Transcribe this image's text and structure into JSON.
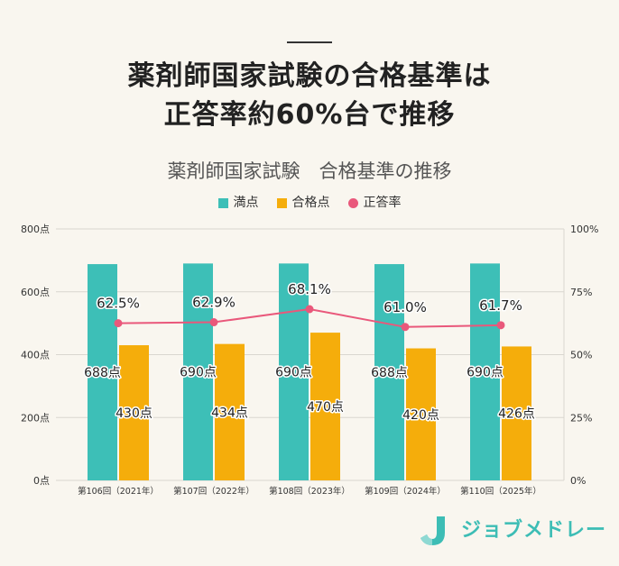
{
  "header": {
    "title_line1": "薬剤師国家試験の合格基準は",
    "title_line2": "正答率約60%台で推移"
  },
  "chart_data": {
    "type": "bar",
    "title": "薬剤師国家試験　合格基準の推移",
    "categories": [
      "第106回（2021年）",
      "第107回（2022年）",
      "第108回（2023年）",
      "第109回（2024年）",
      "第110回（2025年）"
    ],
    "series": [
      {
        "name": "満点",
        "type": "bar",
        "axis": "left",
        "values": [
          688,
          690,
          690,
          688,
          690
        ],
        "unit": "点",
        "color": "#3dbfb7"
      },
      {
        "name": "合格点",
        "type": "bar",
        "axis": "left",
        "values": [
          430,
          434,
          470,
          420,
          426
        ],
        "unit": "点",
        "color": "#f5ad0b"
      },
      {
        "name": "正答率",
        "type": "line",
        "axis": "right",
        "values": [
          62.5,
          62.9,
          68.1,
          61.0,
          61.7
        ],
        "unit": "%",
        "color": "#e9587b"
      }
    ],
    "ylim": [
      0,
      800
    ],
    "y_ticks": [
      0,
      200,
      400,
      600,
      800
    ],
    "y_unit": "点",
    "y2lim": [
      0,
      100
    ],
    "y2_ticks": [
      0,
      25,
      50,
      75,
      100
    ],
    "y2_unit": "%",
    "grid": true,
    "legend": "top-center"
  },
  "logo": {
    "text": "ジョブメドレー",
    "icon": "jobmedley-logo-icon"
  },
  "colors": {
    "background": "#f9f6ef",
    "title": "#222222",
    "logo": "#3dbdb5"
  }
}
